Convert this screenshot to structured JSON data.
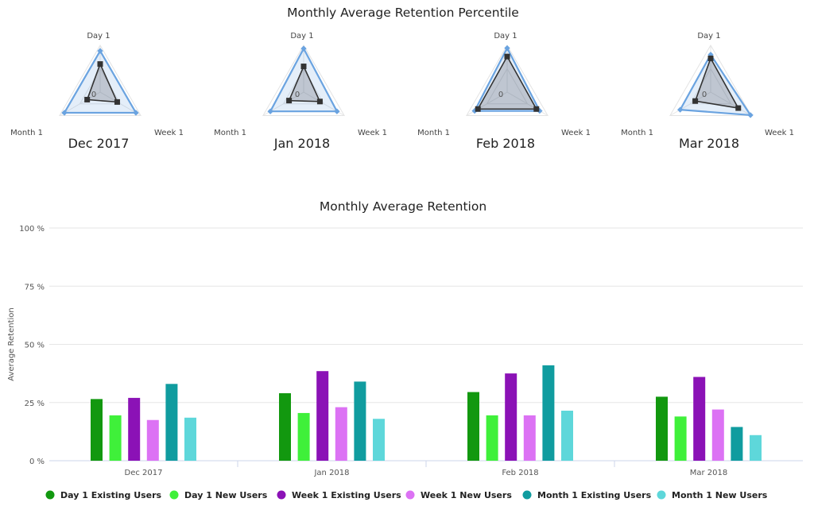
{
  "chart_data": [
    {
      "type": "radar",
      "title": "Monthly Average Retention Percentile",
      "axes": [
        "Day 1",
        "Week 1",
        "Month 1"
      ],
      "center_label": "0",
      "scale_max": 100,
      "charts": [
        {
          "title": "Dec 2017",
          "outer": [
            88,
            88,
            88
          ],
          "inner": [
            60,
            42,
            32
          ]
        },
        {
          "title": "Jan 2018",
          "outer": [
            93,
            82,
            82
          ],
          "inner": [
            55,
            40,
            36
          ]
        },
        {
          "title": "Feb 2018",
          "outer": [
            94,
            80,
            80
          ],
          "inner": [
            76,
            72,
            72
          ]
        },
        {
          "title": "Mar 2018",
          "outer": [
            80,
            98,
            75
          ],
          "inner": [
            72,
            68,
            38
          ]
        }
      ],
      "series_colors": {
        "outer": "#6aa3e0",
        "inner": "#333333"
      }
    },
    {
      "type": "bar",
      "title": "Monthly Average Retention",
      "ylabel": "Average Retention",
      "xlabel": "",
      "ylim": [
        0,
        100
      ],
      "yticks": [
        0,
        25,
        50,
        75,
        100
      ],
      "ytick_suffix": " %",
      "categories": [
        "Dec 2017",
        "Jan 2018",
        "Feb 2018",
        "Mar 2018"
      ],
      "series": [
        {
          "name": "Day 1 Existing Users",
          "color": "#12980f",
          "values": [
            26.5,
            29,
            29.5,
            27.5
          ]
        },
        {
          "name": "Day 1 New Users",
          "color": "#3ff03a",
          "values": [
            19.5,
            20.5,
            19.5,
            19
          ]
        },
        {
          "name": "Week 1 Existing Users",
          "color": "#8b12b6",
          "values": [
            27,
            38.5,
            37.5,
            36
          ]
        },
        {
          "name": "Week 1 New Users",
          "color": "#dc72f4",
          "values": [
            17.5,
            23,
            19.5,
            22
          ]
        },
        {
          "name": "Month 1 Existing Users",
          "color": "#109c9f",
          "values": [
            33,
            34,
            41,
            14.5
          ]
        },
        {
          "name": "Month 1 New Users",
          "color": "#5ed7da",
          "values": [
            18.5,
            18,
            21.5,
            11
          ]
        }
      ],
      "legend_position": "bottom",
      "grid": true
    }
  ]
}
